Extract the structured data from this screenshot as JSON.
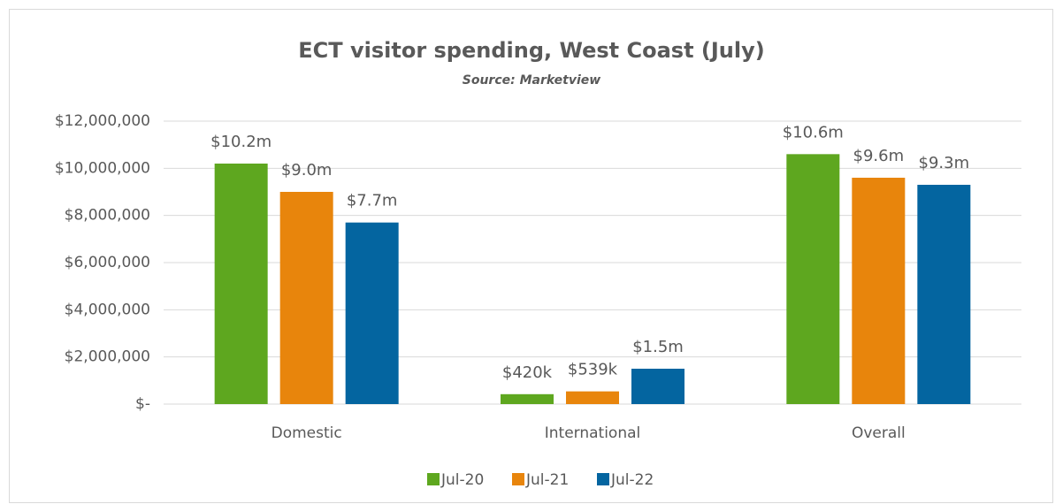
{
  "chart_data": {
    "type": "bar",
    "title": "ECT visitor spending, West Coast (July)",
    "subtitle": "Source: Marketview",
    "categories": [
      "Domestic",
      "International",
      "Overall"
    ],
    "series": [
      {
        "name": "Jul-20",
        "color": "#5ea71f",
        "values": [
          10200000,
          420000,
          10600000
        ],
        "value_labels": [
          "$10.2m",
          "$420k",
          "$10.6m"
        ]
      },
      {
        "name": "Jul-21",
        "color": "#e8850c",
        "values": [
          9000000,
          539000,
          9600000
        ],
        "value_labels": [
          "$9.0m",
          "$539k",
          "$9.6m"
        ]
      },
      {
        "name": "Jul-22",
        "color": "#0465a0",
        "values": [
          7700000,
          1500000,
          9300000
        ],
        "value_labels": [
          "$7.7m",
          "$1.5m",
          "$9.3m"
        ]
      }
    ],
    "ylim": [
      0,
      12000000
    ],
    "yticks": [
      {
        "value": 0,
        "label": "$-"
      },
      {
        "value": 2000000,
        "label": "$2,000,000"
      },
      {
        "value": 4000000,
        "label": "$4,000,000"
      },
      {
        "value": 6000000,
        "label": "$6,000,000"
      },
      {
        "value": 8000000,
        "label": "$8,000,000"
      },
      {
        "value": 10000000,
        "label": "$10,000,000"
      },
      {
        "value": 12000000,
        "label": "$12,000,000"
      }
    ],
    "grid": true,
    "legend": "bottom"
  }
}
